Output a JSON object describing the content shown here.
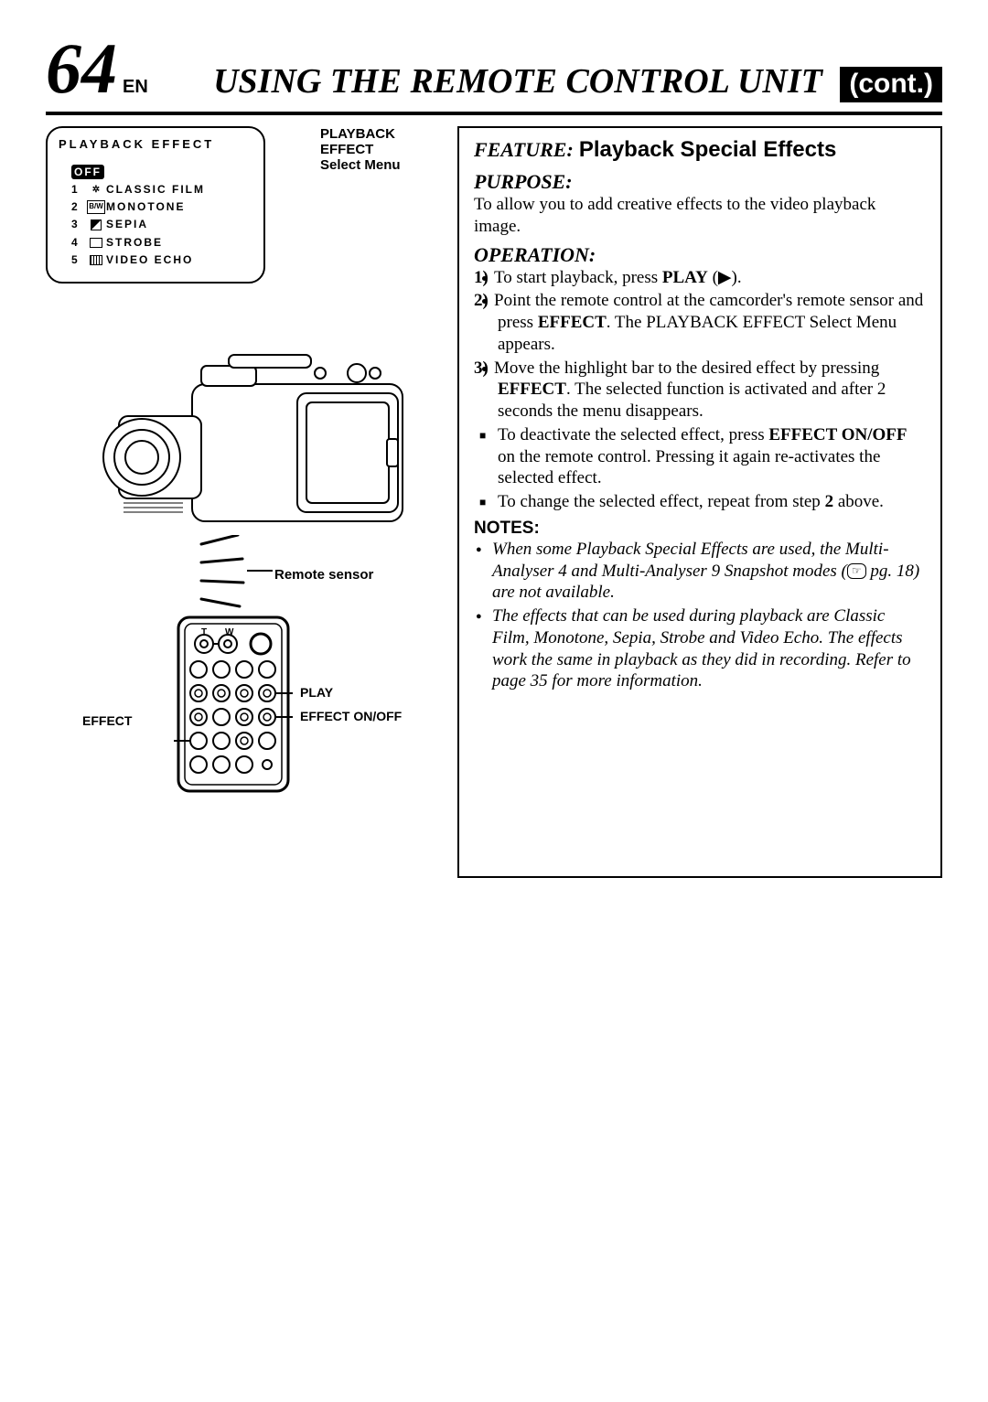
{
  "header": {
    "page_number": "64",
    "lang": "EN",
    "title": "USING THE REMOTE CONTROL UNIT",
    "cont": "(cont.)"
  },
  "menu": {
    "title": "PLAYBACK EFFECT",
    "off": "OFF",
    "items": [
      {
        "num": "1",
        "icon": "film-icon",
        "label": "CLASSIC FILM"
      },
      {
        "num": "2",
        "icon": "bw-icon",
        "label": "MONOTONE"
      },
      {
        "num": "3",
        "icon": "sepia-icon",
        "label": "SEPIA"
      },
      {
        "num": "4",
        "icon": "strobe-icon",
        "label": "STROBE"
      },
      {
        "num": "5",
        "icon": "echo-icon",
        "label": "VIDEO ECHO"
      }
    ],
    "side_label_line1": "PLAYBACK EFFECT",
    "side_label_line2": "Select Menu"
  },
  "illus_labels": {
    "remote_sensor": "Remote sensor",
    "play": "PLAY",
    "effect_onoff": "EFFECT ON/OFF",
    "effect": "EFFECT"
  },
  "right": {
    "feature_label": "FEATURE:",
    "feature_title": "Playback Special Effects",
    "purpose_label": "PURPOSE:",
    "purpose_text": "To allow you to add creative effects to the video playback image.",
    "operation_label": "OPERATION:",
    "op_steps": [
      {
        "n": "1)",
        "html": "To start playback, press <b>PLAY</b> (▶)."
      },
      {
        "n": "2)",
        "html": "Point the remote control at the camcorder's remote sensor and press <b>EFFECT</b>. The PLAYBACK EFFECT Select Menu appears."
      },
      {
        "n": "3)",
        "html": "Move the highlight bar to the desired effect by pressing <b>EFFECT</b>. The selected function is activated and after 2 seconds the menu disappears."
      }
    ],
    "op_bullets": [
      "To deactivate the selected effect, press <b>EFFECT ON/OFF</b> on the remote control. Pressing it again re-activates the selected effect.",
      "To change the selected effect, repeat from step <b>2</b> above."
    ],
    "notes_head": "NOTES:",
    "notes": [
      "When some Playback Special Effects are used, the Multi-Analyser 4 and Multi-Analyser 9 Snapshot modes (<span class=\"ref-icon\">☞</span> pg. 18) are not available.",
      "The effects that can be used during playback are Classic Film, Monotone, Sepia, Strobe and Video Echo. The effects work the same in playback as they did in recording. Refer to page 35 for more information."
    ]
  },
  "colors": {
    "bg": "#ffffff",
    "fg": "#000000"
  }
}
